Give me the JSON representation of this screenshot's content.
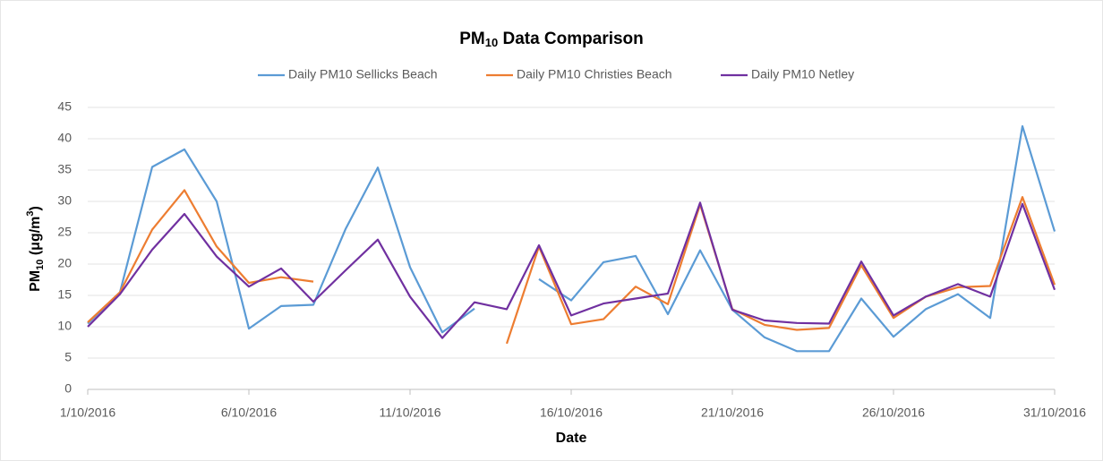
{
  "chart_data": {
    "type": "line",
    "title": [
      "PM",
      "10",
      " Data Comparison"
    ],
    "x_label": "Date",
    "y_label": [
      "PM",
      "10",
      " (μg/m",
      "3",
      ")"
    ],
    "categories": [
      "1/10/2016",
      null,
      null,
      null,
      null,
      "6/10/2016",
      null,
      null,
      null,
      null,
      "11/10/2016",
      null,
      null,
      null,
      null,
      "16/10/2016",
      null,
      null,
      null,
      null,
      "21/10/2016",
      null,
      null,
      null,
      null,
      "26/10/2016",
      null,
      null,
      null,
      null,
      "31/10/2016"
    ],
    "ylim": [
      0,
      45
    ],
    "yticks": [
      0,
      5,
      10,
      15,
      20,
      25,
      30,
      35,
      40,
      45
    ],
    "grid": true,
    "legend": "top",
    "series": [
      {
        "name": "Daily PM10 Sellicks Beach",
        "color": "#5b9bd5",
        "values": [
          10.5,
          15.5,
          35.5,
          38.3,
          30,
          9.7,
          13.3,
          13.5,
          25.6,
          35.4,
          19.5,
          9.1,
          12.9,
          null,
          17.6,
          14.2,
          20.3,
          21.3,
          12,
          22.2,
          12.7,
          8.3,
          6.1,
          6.1,
          14.5,
          8.4,
          12.8,
          15.2,
          11.4,
          42,
          25.2
        ]
      },
      {
        "name": "Daily PM10 Christies Beach",
        "color": "#ed7d31",
        "values": [
          10.7,
          15.5,
          25.5,
          31.8,
          22.8,
          17,
          17.9,
          17.2,
          null,
          null,
          null,
          null,
          null,
          7.3,
          22.8,
          10.4,
          11.2,
          16.4,
          13.6,
          29.5,
          12.8,
          10.3,
          9.5,
          9.8,
          19.8,
          11.4,
          14.8,
          16.3,
          16.5,
          30.7,
          16.7
        ]
      },
      {
        "name": "Daily PM10 Netley",
        "color": "#7030a0",
        "values": [
          10,
          15.2,
          22.3,
          28,
          21.2,
          16.4,
          19.3,
          14,
          19,
          23.9,
          14.8,
          8.2,
          13.9,
          12.8,
          23,
          11.8,
          13.7,
          14.5,
          15.3,
          29.8,
          12.7,
          11,
          10.6,
          10.5,
          20.4,
          11.8,
          14.8,
          16.8,
          14.8,
          29.6,
          15.9
        ]
      }
    ]
  }
}
